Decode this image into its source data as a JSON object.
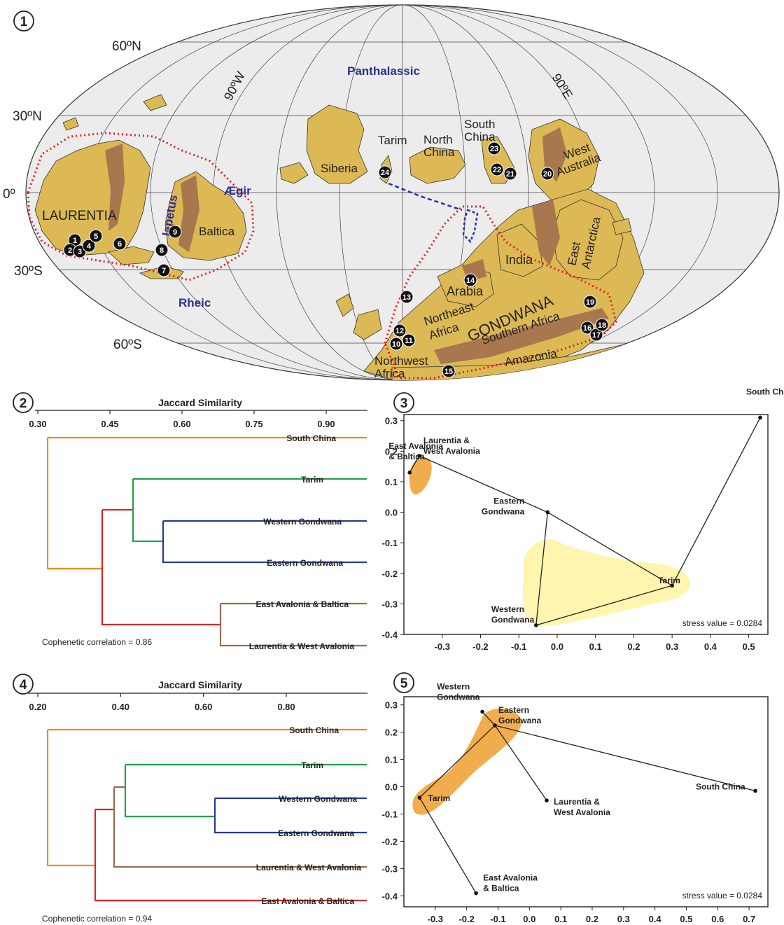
{
  "panels": {
    "p1": {
      "badge": "1"
    },
    "p2": {
      "badge": "2"
    },
    "p3": {
      "badge": "3"
    },
    "p4": {
      "badge": "4"
    },
    "p5": {
      "badge": "5"
    }
  },
  "map": {
    "lat_labels": [
      "60ºN",
      "30ºN",
      "0º",
      "30ºS",
      "60ºS"
    ],
    "lon_labels": [
      "90ºW",
      "90ºE"
    ],
    "oceans": [
      "Panthalassic",
      "Iapetus",
      "Ægir",
      "Rheic"
    ],
    "regions": {
      "laurentia": "LAURENTIA",
      "baltica": "Baltica",
      "siberia": "Siberia",
      "tarim": "Tarim",
      "north_china": "North China",
      "north_china_l1": "North",
      "north_china_l2": "China",
      "south_china_l1": "South",
      "south_china_l2": "China",
      "west_australia_l1": "West",
      "west_australia_l2": "Australia",
      "east_antarctica_l1": "East",
      "east_antarctica_l2": "Antarctica",
      "india": "India",
      "arabia": "Arabia",
      "ne_africa_l1": "Northeast",
      "ne_africa_l2": "Africa",
      "gondwana": "GONDWANA",
      "southern_africa": "Southern Africa",
      "amazonia": "Amazonia",
      "nw_africa_l1": "Northwest",
      "nw_africa_l2": "Africa"
    },
    "localities": [
      "1",
      "2",
      "3",
      "4",
      "5",
      "6",
      "7",
      "8",
      "9",
      "10",
      "11",
      "12",
      "13",
      "14",
      "15",
      "16",
      "17",
      "18",
      "19",
      "20",
      "21",
      "22",
      "23",
      "24"
    ]
  },
  "dendrogram_2": {
    "axis_title": "Jaccard Similarity",
    "ticks": [
      "0.30",
      "0.45",
      "0.60",
      "0.75",
      "0.90"
    ],
    "tick_values": [
      0.3,
      0.45,
      0.6,
      0.75,
      0.9
    ],
    "leaves": [
      "South China",
      "Tarim",
      "Western Gondwana",
      "Eastern Gondwana",
      "East Avalonia & Baltica",
      "Laurentia & West Avalonia"
    ],
    "cophenetic": "Cophenetic correlation = 0.86"
  },
  "dendrogram_4": {
    "axis_title": "Jaccard Similarity",
    "ticks": [
      "0.20",
      "0.40",
      "0.60",
      "0.80"
    ],
    "tick_values": [
      0.2,
      0.4,
      0.6,
      0.8
    ],
    "leaves": [
      "South China",
      "Tarim",
      "Western Gondwana",
      "Eastern Gondwana",
      "Laurentia & West Avalonia",
      "East Avalonia & Baltica"
    ],
    "cophenetic": "Cophenetic correlation = 0.94"
  },
  "chart_data": [
    {
      "type": "scatter",
      "panel": "3",
      "title": "",
      "xlabel": "",
      "ylabel": "",
      "xlim": [
        -0.4,
        0.55
      ],
      "ylim": [
        -0.4,
        0.32
      ],
      "x_ticks": [
        "-0.3",
        "-0.2",
        "-0.1",
        "0.0",
        "0.1",
        "0.2",
        "0.3",
        "0.4",
        "0.5"
      ],
      "y_ticks": [
        "0.3",
        "0.2",
        "0.1",
        "0.0",
        "-0.1",
        "-0.2",
        "-0.3",
        "-0.4"
      ],
      "points": [
        {
          "label_l1": "South China",
          "label_l2": "",
          "x": 0.53,
          "y": 0.31
        },
        {
          "label_l1": "Laurentia &",
          "label_l2": "West Avalonia",
          "x": -0.36,
          "y": 0.185
        },
        {
          "label_l1": "East Avalonia",
          "label_l2": "& Baltica",
          "x": -0.385,
          "y": 0.13
        },
        {
          "label_l1": "Eastern",
          "label_l2": "Gondwana",
          "x": -0.025,
          "y": 0.0
        },
        {
          "label_l1": "Tarim",
          "label_l2": "",
          "x": 0.3,
          "y": -0.24
        },
        {
          "label_l1": "Western",
          "label_l2": "Gondwana",
          "x": -0.055,
          "y": -0.37
        }
      ],
      "edges": [
        [
          1,
          2
        ],
        [
          1,
          3
        ],
        [
          3,
          5
        ],
        [
          3,
          4
        ],
        [
          4,
          5
        ],
        [
          4,
          0
        ]
      ],
      "annotation": "stress value = 0.0284"
    },
    {
      "type": "scatter",
      "panel": "5",
      "title": "",
      "xlabel": "",
      "ylabel": "",
      "xlim": [
        -0.4,
        0.76
      ],
      "ylim": [
        -0.44,
        0.33
      ],
      "x_ticks": [
        "-0.3",
        "-0.2",
        "-0.1",
        "0.0",
        "0.1",
        "0.2",
        "0.3",
        "0.4",
        "0.5",
        "0.6",
        "0.7"
      ],
      "y_ticks": [
        "0.3",
        "0.2",
        "0.1",
        "0.0",
        "-0.1",
        "-0.2",
        "-0.3",
        "-0.4"
      ],
      "points": [
        {
          "label_l1": "Western",
          "label_l2": "Gondwana",
          "x": -0.15,
          "y": 0.275
        },
        {
          "label_l1": "Eastern",
          "label_l2": "Gondwana",
          "x": -0.11,
          "y": 0.225
        },
        {
          "label_l1": "Laurentia &",
          "label_l2": "West Avalonia",
          "x": 0.055,
          "y": -0.05
        },
        {
          "label_l1": "South China",
          "label_l2": "",
          "x": 0.72,
          "y": -0.015
        },
        {
          "label_l1": "Tarim",
          "label_l2": "",
          "x": -0.35,
          "y": -0.04
        },
        {
          "label_l1": "East Avalonia",
          "label_l2": "& Baltica",
          "x": -0.17,
          "y": -0.39
        }
      ],
      "edges": [
        [
          0,
          1
        ],
        [
          1,
          4
        ],
        [
          1,
          2
        ],
        [
          1,
          3
        ],
        [
          4,
          5
        ]
      ],
      "annotation": "stress value = 0.0284"
    }
  ]
}
